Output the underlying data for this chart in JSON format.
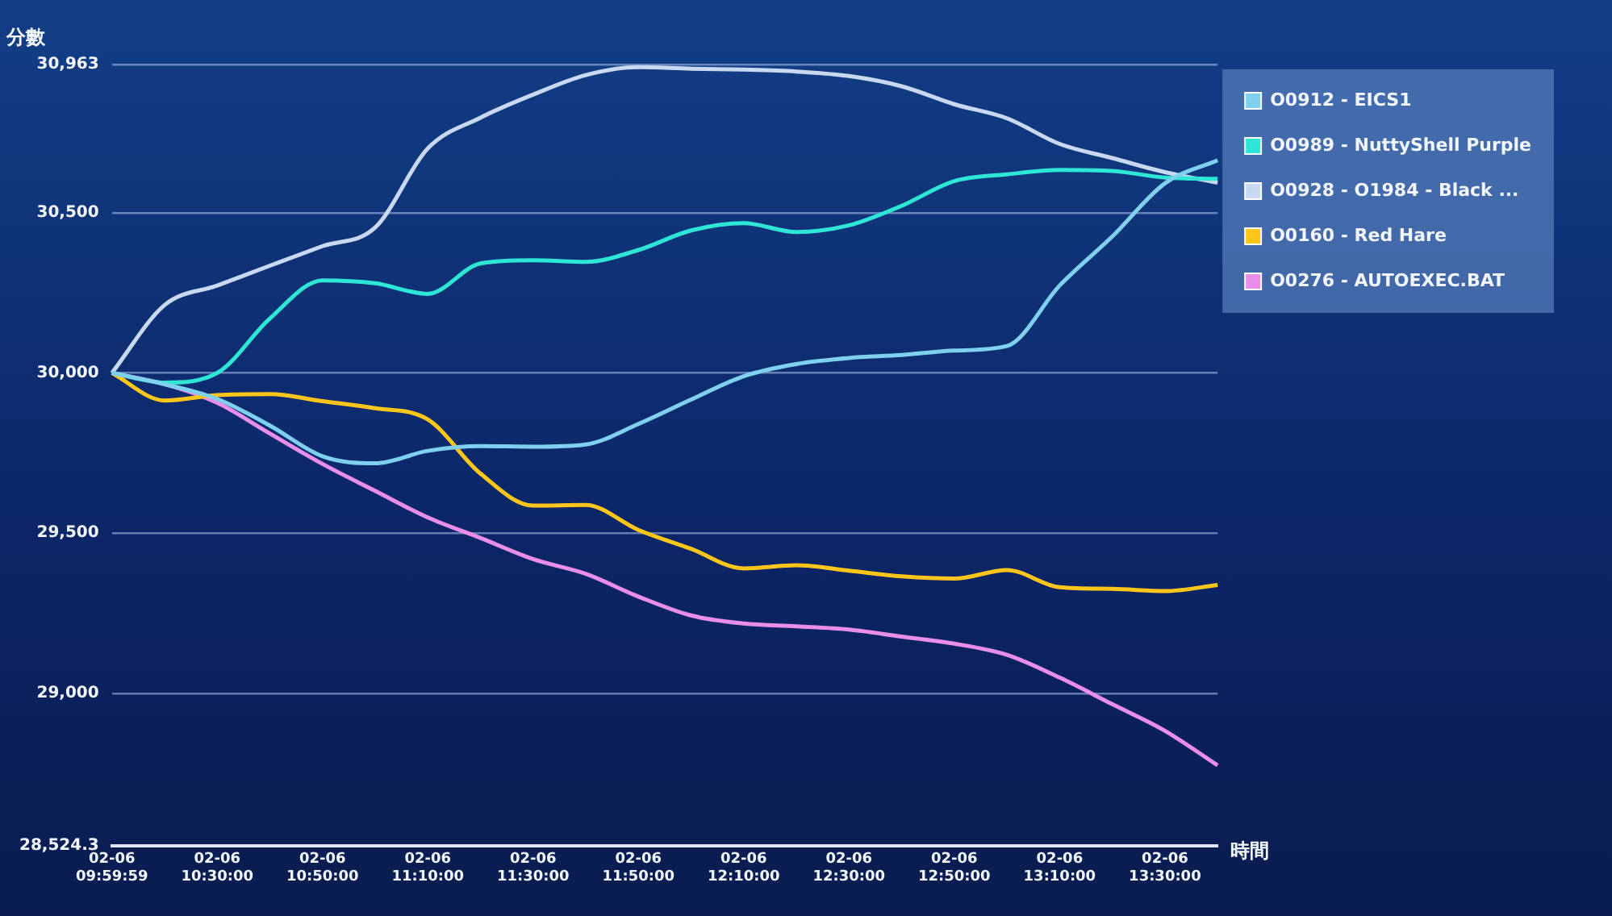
{
  "chart_data": {
    "type": "line",
    "xlabel": "時間",
    "ylabel": "分數",
    "categories": [
      "02-06 09:59:59",
      null,
      "02-06 10:30:00",
      null,
      "02-06 10:50:00",
      null,
      "02-06 11:10:00",
      null,
      "02-06 11:30:00",
      null,
      "02-06 11:50:00",
      null,
      "02-06 12:10:00",
      null,
      "02-06 12:30:00",
      null,
      "02-06 12:50:00",
      null,
      "02-06 13:10:00",
      null,
      "02-06 13:30:00",
      null
    ],
    "ylim": [
      28524.3,
      30963
    ],
    "yticks": [
      {
        "value": 28524.3,
        "label": "28,524.3"
      },
      {
        "value": 29000,
        "label": "29,000"
      },
      {
        "value": 29500,
        "label": "29,500"
      },
      {
        "value": 30000,
        "label": "30,000"
      },
      {
        "value": 30500,
        "label": "30,500"
      },
      {
        "value": 30963,
        "label": "30,963"
      }
    ],
    "grid": "y",
    "legend": "top right",
    "marker": "none",
    "line_style": "solid",
    "series": [
      {
        "name": "O0912 - EICS1",
        "color": "#7fd0ee",
        "values": [
          30000,
          29965,
          29919,
          29836,
          29740,
          29718,
          29757,
          29772,
          29770,
          29777,
          29841,
          29917,
          29990,
          30028,
          30047,
          30056,
          30070,
          30084,
          30273,
          30426,
          30592,
          30664
        ]
      },
      {
        "name": "O0989 - NuttyShell Purple",
        "color": "#2ee6d6",
        "values": [
          30000,
          29970,
          30000,
          30170,
          30289,
          30280,
          30247,
          30342,
          30352,
          30347,
          30384,
          30445,
          30468,
          30440,
          30461,
          30522,
          30599,
          30620,
          30634,
          30631,
          30610,
          30606
        ]
      },
      {
        "name": "O0928 - O1984 - Black ...",
        "color": "#c8d8f0",
        "values": [
          30000,
          30212,
          30273,
          30335,
          30396,
          30454,
          30701,
          30797,
          30869,
          30930,
          30955,
          30950,
          30947,
          30941,
          30927,
          30895,
          30839,
          30795,
          30715,
          30671,
          30627,
          30594
        ]
      },
      {
        "name": "O0160 - Red Hare",
        "color": "#ffc61a",
        "values": [
          30000,
          29914,
          29931,
          29934,
          29912,
          29890,
          29855,
          29686,
          29586,
          29588,
          29510,
          29451,
          29390,
          29400,
          29383,
          29365,
          29358,
          29385,
          29331,
          29326,
          29319,
          29338
        ]
      },
      {
        "name": "O0276 - AUTOEXEC.BAT",
        "color": "#e88ee8",
        "values": [
          30000,
          29965,
          29907,
          29811,
          29716,
          29632,
          29549,
          29485,
          29419,
          29373,
          29302,
          29243,
          29218,
          29209,
          29199,
          29177,
          29155,
          29120,
          29049,
          28966,
          28883,
          28775
        ]
      }
    ]
  }
}
